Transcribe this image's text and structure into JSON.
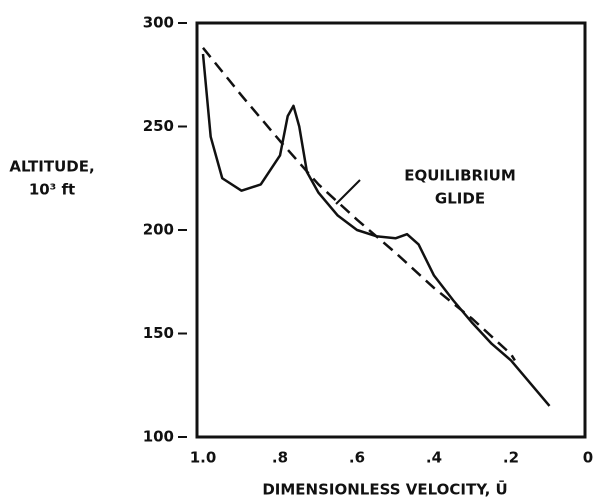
{
  "chart_data": {
    "type": "line",
    "ylabel": [
      "ALTITUDE,",
      "10³ ft"
    ],
    "xlabel": "DIMENSIONLESS VELOCITY, Ū",
    "annotation": [
      "EQUILIBRIUM",
      "GLIDE"
    ],
    "xlim": [
      1.0,
      0
    ],
    "ylim": [
      100,
      300
    ],
    "xticks": [
      {
        "value": 1.0,
        "label": "1.0"
      },
      {
        "value": 0.8,
        "label": ".8"
      },
      {
        "value": 0.6,
        "label": ".6"
      },
      {
        "value": 0.4,
        "label": ".4"
      },
      {
        "value": 0.2,
        "label": ".2"
      },
      0
    ],
    "yticks": [
      300,
      250,
      200,
      150,
      100
    ],
    "grid": false,
    "series": [
      {
        "color": "#111111",
        "dashed": false,
        "x": [
          1.0,
          0.98,
          0.95,
          0.9,
          0.85,
          0.8,
          0.78,
          0.765,
          0.75,
          0.73,
          0.7,
          0.65,
          0.6,
          0.55,
          0.5,
          0.47,
          0.44,
          0.4,
          0.35,
          0.3,
          0.25,
          0.2,
          0.15,
          0.1
        ],
        "values": [
          285,
          245,
          225,
          219,
          222,
          236,
          255,
          260,
          250,
          228,
          218,
          207,
          200,
          197,
          196,
          198,
          193,
          178,
          166,
          155,
          145,
          137,
          126,
          115
        ]
      },
      {
        "color": "#111111",
        "dashed": true,
        "x": [
          1.0,
          0.9,
          0.8,
          0.7,
          0.6,
          0.5,
          0.4,
          0.3,
          0.2,
          0.19
        ],
        "values": [
          288,
          265,
          243,
          222,
          205,
          189,
          172,
          157,
          140,
          137
        ]
      }
    ]
  }
}
